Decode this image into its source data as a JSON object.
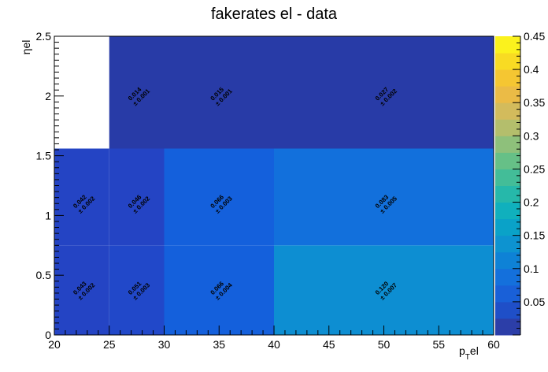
{
  "chart_data": {
    "type": "heatmap",
    "title": "fakerates el - data",
    "xlabel_main": "p",
    "xlabel_sub": "T",
    "xlabel_tail": "el",
    "ylabel": "ηel",
    "x_edges": [
      20,
      25,
      30,
      40,
      60
    ],
    "xlim": [
      20,
      60
    ],
    "ylim": [
      0,
      2.5
    ],
    "x_ticks": [
      20,
      25,
      30,
      35,
      40,
      45,
      50,
      55,
      60
    ],
    "y_ticks": [
      0,
      0.5,
      1,
      1.5,
      2,
      2.5
    ],
    "x_tick_labels": [
      "20",
      "25",
      "30",
      "35",
      "40",
      "45",
      "50",
      "55",
      "60"
    ],
    "y_tick_labels": [
      "0",
      "0.5",
      "1",
      "1.5",
      "2",
      "2.5"
    ],
    "zlim": [
      0,
      0.45
    ],
    "z_ticks": [
      0.05,
      0.1,
      0.15,
      0.2,
      0.25,
      0.3,
      0.35,
      0.4,
      0.45
    ],
    "z_tick_labels": [
      "0.05",
      "0.1",
      "0.15",
      "0.2",
      "0.25",
      "0.3",
      "0.35",
      "0.4",
      "0.45"
    ],
    "palette": [
      "#2c3ea8",
      "#1f4fc8",
      "#1960d8",
      "#1470dc",
      "#0e82d6",
      "#0d93d0",
      "#0aa2c8",
      "#10b0bd",
      "#26b8aa",
      "#43bd98",
      "#66c087",
      "#8ec07b",
      "#b4be6c",
      "#d3bb5c",
      "#ebbb46",
      "#f5c632",
      "#f8db23",
      "#fbf21d"
    ],
    "cells": [
      {
        "x0": 20,
        "x1": 25,
        "y0": 0,
        "y1": 0.75,
        "label_x": 22.5,
        "label_y": 0.375,
        "value": "0.043",
        "error": "± 0.002",
        "color": "#2444c4"
      },
      {
        "x0": 25,
        "x1": 30,
        "y0": 0,
        "y1": 0.75,
        "label_x": 27.5,
        "label_y": 0.375,
        "value": "0.051",
        "error": "± 0.003",
        "color": "#2148c9"
      },
      {
        "x0": 30,
        "x1": 40,
        "y0": 0,
        "y1": 0.75,
        "label_x": 35,
        "label_y": 0.375,
        "value": "0.066",
        "error": "± 0.004",
        "color": "#1460dc"
      },
      {
        "x0": 40,
        "x1": 60,
        "y0": 0,
        "y1": 0.75,
        "label_x": 50,
        "label_y": 0.375,
        "value": "0.120",
        "error": "± 0.007",
        "color": "#0d8ed2"
      },
      {
        "x0": 20,
        "x1": 25,
        "y0": 0.75,
        "y1": 1.56,
        "label_x": 22.5,
        "label_y": 1.1,
        "value": "0.042",
        "error": "± 0.002",
        "color": "#2444c4"
      },
      {
        "x0": 25,
        "x1": 30,
        "y0": 0.75,
        "y1": 1.56,
        "label_x": 27.5,
        "label_y": 1.1,
        "value": "0.046",
        "error": "± 0.002",
        "color": "#2444c4"
      },
      {
        "x0": 30,
        "x1": 40,
        "y0": 0.75,
        "y1": 1.56,
        "label_x": 35,
        "label_y": 1.1,
        "value": "0.066",
        "error": "± 0.003",
        "color": "#1460dc"
      },
      {
        "x0": 40,
        "x1": 60,
        "y0": 0.75,
        "y1": 1.56,
        "label_x": 50,
        "label_y": 1.1,
        "value": "0.083",
        "error": "± 0.005",
        "color": "#1270dc"
      },
      {
        "x0": 25,
        "x1": 30,
        "y0": 1.56,
        "y1": 2.5,
        "label_x": 27.5,
        "label_y": 2.0,
        "value": "0.014",
        "error": "± 0.001",
        "color": "#283ba7"
      },
      {
        "x0": 30,
        "x1": 40,
        "y0": 1.56,
        "y1": 2.5,
        "label_x": 35,
        "label_y": 2.0,
        "value": "0.015",
        "error": "± 0.001",
        "color": "#283ba7"
      },
      {
        "x0": 40,
        "x1": 60,
        "y0": 1.56,
        "y1": 2.5,
        "label_x": 50,
        "label_y": 2.0,
        "value": "0.027",
        "error": "± 0.002",
        "color": "#283ba7"
      }
    ]
  }
}
